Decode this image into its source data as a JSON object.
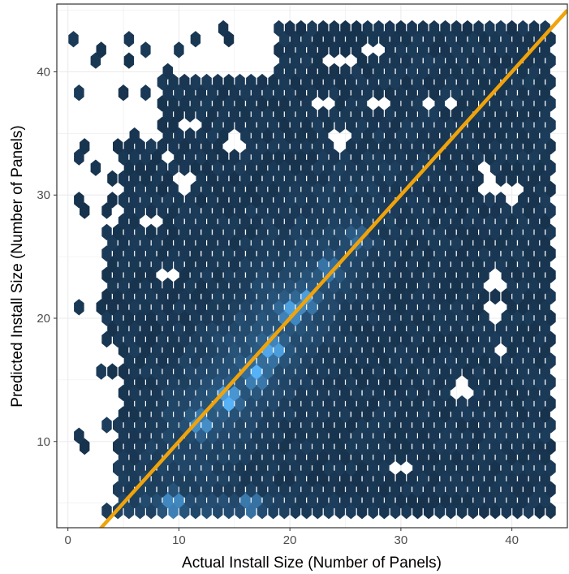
{
  "chart_data": {
    "type": "hexbin",
    "title": "",
    "xlabel": "Actual Install Size (Number of Panels)",
    "ylabel": "Predicted Install Size (Number of Panels)",
    "xlim": [
      -1,
      45
    ],
    "ylim": [
      3,
      45.5
    ],
    "x_ticks": [
      0,
      10,
      20,
      30,
      40
    ],
    "y_ticks": [
      10,
      20,
      30,
      40
    ],
    "x_tick_labels": [
      "0",
      "10",
      "20",
      "30",
      "40"
    ],
    "y_tick_labels": [
      "10",
      "20",
      "30",
      "40"
    ],
    "grid": true,
    "legend": "none",
    "hex_fill_low": "#132b43",
    "hex_fill_high": "#56b1f7",
    "reference_line": {
      "type": "identity",
      "intercept": 0,
      "slope": 1,
      "color": "#f0a30a"
    },
    "density_points": [
      {
        "x": 14.5,
        "y": 13.5,
        "w": 1.0
      },
      {
        "x": 17,
        "y": 15.5,
        "w": 0.9
      },
      {
        "x": 18.5,
        "y": 17.5,
        "w": 0.85
      },
      {
        "x": 20,
        "y": 20.5,
        "w": 0.75
      },
      {
        "x": 21.5,
        "y": 21.5,
        "w": 0.7
      },
      {
        "x": 12,
        "y": 11.5,
        "w": 0.7
      },
      {
        "x": 9.5,
        "y": 5,
        "w": 0.65
      },
      {
        "x": 16.5,
        "y": 5,
        "w": 0.55
      },
      {
        "x": 23.5,
        "y": 24,
        "w": 0.5
      },
      {
        "x": 26,
        "y": 26.5,
        "w": 0.4
      }
    ],
    "empty_cells": [
      {
        "x": 11,
        "y": 43.5
      },
      {
        "x": 27.5,
        "y": 42
      },
      {
        "x": 25,
        "y": 41
      },
      {
        "x": 23.5,
        "y": 41
      },
      {
        "x": 23,
        "y": 37.5
      },
      {
        "x": 28,
        "y": 37.5
      },
      {
        "x": 32.5,
        "y": 37.5
      },
      {
        "x": 34.5,
        "y": 37.5
      },
      {
        "x": 11,
        "y": 35.5
      },
      {
        "x": 15,
        "y": 34.5
      },
      {
        "x": 24.5,
        "y": 34.5
      },
      {
        "x": 9,
        "y": 33
      },
      {
        "x": 37.5,
        "y": 32
      },
      {
        "x": 10.5,
        "y": 31
      },
      {
        "x": 38,
        "y": 31
      },
      {
        "x": 40,
        "y": 30
      },
      {
        "x": 7.5,
        "y": 28
      },
      {
        "x": 9,
        "y": 23.5
      },
      {
        "x": 38.5,
        "y": 23
      },
      {
        "x": 38.5,
        "y": 20.5
      },
      {
        "x": 39,
        "y": 17.5
      },
      {
        "x": 35.5,
        "y": 14.5
      },
      {
        "x": 30,
        "y": 8
      }
    ]
  }
}
